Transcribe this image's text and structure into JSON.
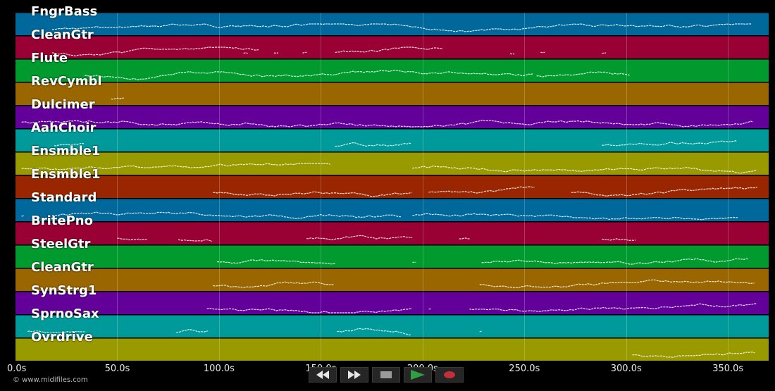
{
  "tracks": [
    {
      "name": "FngrBass",
      "color": "#00689a"
    },
    {
      "name": "CleanGtr",
      "color": "#990033"
    },
    {
      "name": "Flute",
      "color": "#009a2e"
    },
    {
      "name": "RevCymbl",
      "color": "#996600"
    },
    {
      "name": "Dulcimer",
      "color": "#63009a"
    },
    {
      "name": "AahChoir",
      "color": "#009a9a"
    },
    {
      "name": "Ensmble1",
      "color": "#999900"
    },
    {
      "name": "Ensmble1",
      "color": "#992600"
    },
    {
      "name": "Standard",
      "color": "#00689a"
    },
    {
      "name": "BritePno",
      "color": "#990033"
    },
    {
      "name": "SteelGtr",
      "color": "#009a2e"
    },
    {
      "name": "CleanGtr",
      "color": "#996600"
    },
    {
      "name": "SynStrg1",
      "color": "#63009a"
    },
    {
      "name": "SprnoSax",
      "color": "#009a9a"
    },
    {
      "name": "Ovrdrive",
      "color": "#999900"
    }
  ],
  "timeline": {
    "max_seconds": 370,
    "ticks": [
      "0.0s",
      "50.0s",
      "100.0s",
      "150.0s",
      "200.0s",
      "250.0s",
      "300.0s",
      "350.0s"
    ]
  },
  "copyright": "© www.midifiles.com",
  "transport": {
    "rewind_icon": "rewind-icon",
    "fastforward_icon": "fast-forward-icon",
    "stop_icon": "stop-icon",
    "play_icon": "play-icon",
    "record_icon": "record-icon",
    "play_color": "#2ea043",
    "record_color": "#c0303a"
  },
  "note_activity": [
    [
      [
        18,
        362
      ]
    ],
    [
      [
        18,
        120
      ],
      [
        112,
        115
      ],
      [
        127,
        130
      ],
      [
        141,
        144
      ],
      [
        157,
        210
      ],
      [
        243,
        246
      ],
      [
        258,
        261
      ],
      [
        288,
        291
      ]
    ],
    [
      [
        34,
        255
      ],
      [
        256,
        302
      ]
    ],
    [
      [
        47,
        54
      ]
    ],
    [
      [
        3,
        363
      ]
    ],
    [
      [
        19,
        34
      ],
      [
        157,
        195
      ],
      [
        288,
        355
      ]
    ],
    [
      [
        3,
        155
      ],
      [
        195,
        365
      ]
    ],
    [
      [
        97,
        195
      ],
      [
        203,
        255
      ],
      [
        273,
        365
      ]
    ],
    [
      [
        3,
        5
      ],
      [
        18,
        190
      ],
      [
        195,
        355
      ]
    ],
    [
      [
        50,
        65
      ],
      [
        80,
        97
      ],
      [
        143,
        195
      ],
      [
        218,
        224
      ],
      [
        288,
        305
      ]
    ],
    [
      [
        99,
        158
      ],
      [
        195,
        196
      ],
      [
        229,
        360
      ]
    ],
    [
      [
        97,
        157
      ],
      [
        228,
        364
      ]
    ],
    [
      [
        94,
        195
      ],
      [
        203,
        205
      ],
      [
        223,
        365
      ]
    ],
    [
      [
        6,
        35
      ],
      [
        79,
        95
      ],
      [
        158,
        195
      ],
      [
        228,
        230
      ]
    ],
    [
      [
        303,
        364
      ]
    ]
  ]
}
